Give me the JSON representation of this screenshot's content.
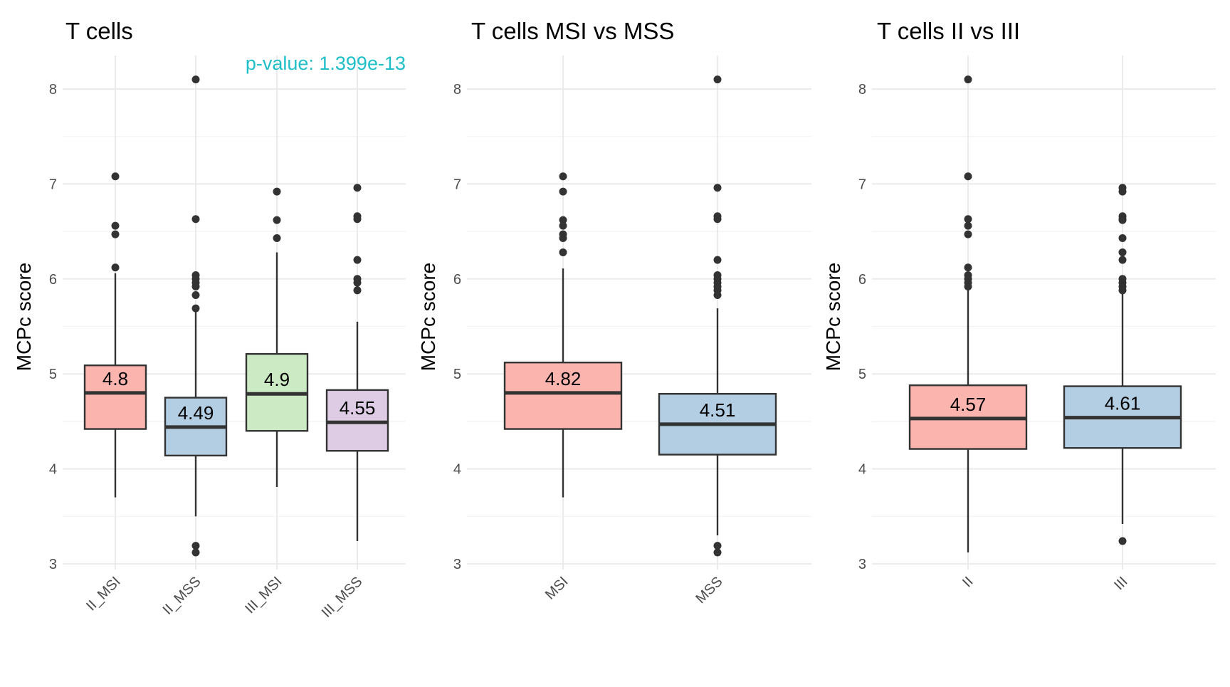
{
  "chart_data": [
    {
      "type": "box",
      "title": "T cells",
      "ylabel": "MCPc score",
      "xlabel": "",
      "ylim": [
        3,
        8
      ],
      "yticks": [
        3,
        4,
        5,
        6,
        7,
        8
      ],
      "grid": true,
      "annotation": "p-value: 1.399e-13",
      "annotation_color": "#1fbfc9",
      "categories": [
        "II_MSI",
        "II_MSS",
        "III_MSI",
        "III_MSS"
      ],
      "boxes": [
        {
          "category": "II_MSI",
          "color": "#fbb4ae",
          "median_label": "4.8",
          "q1": 4.42,
          "median": 4.8,
          "q3": 5.09,
          "whisker_low": 3.7,
          "whisker_high": 6.06,
          "outliers": [
            7.08,
            6.56,
            6.47,
            6.12
          ]
        },
        {
          "category": "II_MSS",
          "color": "#b3cde3",
          "median_label": "4.49",
          "q1": 4.14,
          "median": 4.44,
          "q3": 4.75,
          "whisker_low": 3.5,
          "whisker_high": 5.66,
          "outliers": [
            8.1,
            6.63,
            6.04,
            6.0,
            5.96,
            5.92,
            5.83,
            5.69,
            3.19,
            3.12
          ]
        },
        {
          "category": "III_MSI",
          "color": "#ccebc5",
          "median_label": "4.9",
          "q1": 4.4,
          "median": 4.79,
          "q3": 5.21,
          "whisker_low": 3.81,
          "whisker_high": 6.28,
          "outliers": [
            6.92,
            6.62,
            6.43
          ]
        },
        {
          "category": "III_MSS",
          "color": "#decbe4",
          "median_label": "4.55",
          "q1": 4.19,
          "median": 4.49,
          "q3": 4.83,
          "whisker_low": 3.24,
          "whisker_high": 5.55,
          "outliers": [
            6.96,
            6.66,
            6.63,
            6.2,
            6.0,
            5.96,
            5.88
          ]
        }
      ]
    },
    {
      "type": "box",
      "title": "T cells MSI vs MSS",
      "ylabel": "MCPc score",
      "xlabel": "",
      "ylim": [
        3,
        8
      ],
      "yticks": [
        3,
        4,
        5,
        6,
        7,
        8
      ],
      "grid": true,
      "categories": [
        "MSI",
        "MSS"
      ],
      "boxes": [
        {
          "category": "MSI",
          "color": "#fbb4ae",
          "median_label": "4.82",
          "q1": 4.42,
          "median": 4.8,
          "q3": 5.12,
          "whisker_low": 3.7,
          "whisker_high": 6.11,
          "outliers": [
            7.08,
            6.92,
            6.62,
            6.56,
            6.47,
            6.43,
            6.28
          ]
        },
        {
          "category": "MSS",
          "color": "#b3cde3",
          "median_label": "4.51",
          "q1": 4.15,
          "median": 4.47,
          "q3": 4.79,
          "whisker_low": 3.3,
          "whisker_high": 5.69,
          "outliers": [
            8.1,
            6.96,
            6.66,
            6.63,
            6.2,
            6.04,
            6.0,
            5.96,
            5.92,
            5.88,
            5.83,
            3.19,
            3.12
          ]
        }
      ]
    },
    {
      "type": "box",
      "title": "T cells II vs III",
      "ylabel": "MCPc score",
      "xlabel": "",
      "ylim": [
        3,
        8
      ],
      "yticks": [
        3,
        4,
        5,
        6,
        7,
        8
      ],
      "grid": true,
      "categories": [
        "II",
        "III"
      ],
      "boxes": [
        {
          "category": "II",
          "color": "#fbb4ae",
          "median_label": "4.57",
          "q1": 4.21,
          "median": 4.53,
          "q3": 4.88,
          "whisker_low": 3.12,
          "whisker_high": 5.9,
          "outliers": [
            8.1,
            7.08,
            6.63,
            6.56,
            6.47,
            6.12,
            6.04,
            6.0,
            5.96,
            5.92
          ]
        },
        {
          "category": "III",
          "color": "#b3cde3",
          "median_label": "4.61",
          "q1": 4.22,
          "median": 4.54,
          "q3": 4.87,
          "whisker_low": 3.42,
          "whisker_high": 5.85,
          "outliers": [
            6.96,
            6.92,
            6.66,
            6.63,
            6.62,
            6.43,
            6.28,
            6.2,
            6.0,
            5.96,
            5.92,
            5.88,
            3.24
          ]
        }
      ]
    }
  ]
}
